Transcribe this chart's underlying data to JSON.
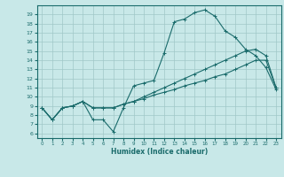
{
  "title": "",
  "xlabel": "Humidex (Indice chaleur)",
  "bg_color": "#c8e8e8",
  "line_color": "#1a6b6b",
  "grid_color": "#a0c8c8",
  "xlim": [
    -0.5,
    23.5
  ],
  "ylim": [
    5.5,
    20.0
  ],
  "xticks": [
    0,
    1,
    2,
    3,
    4,
    5,
    6,
    7,
    8,
    9,
    10,
    11,
    12,
    13,
    14,
    15,
    16,
    17,
    18,
    19,
    20,
    21,
    22,
    23
  ],
  "yticks": [
    6,
    7,
    8,
    9,
    10,
    11,
    12,
    13,
    14,
    15,
    16,
    17,
    18,
    19
  ],
  "line1_x": [
    0,
    1,
    2,
    3,
    4,
    5,
    6,
    7,
    8,
    9,
    10,
    11,
    12,
    13,
    14,
    15,
    16,
    17,
    18,
    19,
    20,
    21,
    22,
    23
  ],
  "line1_y": [
    8.8,
    7.5,
    8.8,
    9.0,
    9.5,
    7.5,
    7.5,
    6.2,
    8.8,
    11.2,
    11.5,
    11.8,
    14.8,
    18.2,
    18.5,
    19.2,
    19.5,
    18.8,
    17.2,
    16.5,
    15.2,
    14.5,
    13.2,
    10.8
  ],
  "line2_x": [
    0,
    1,
    2,
    3,
    4,
    5,
    6,
    7,
    8,
    9,
    10,
    11,
    12,
    13,
    14,
    15,
    16,
    17,
    18,
    19,
    20,
    21,
    22,
    23
  ],
  "line2_y": [
    8.8,
    7.5,
    8.8,
    9.0,
    9.5,
    8.8,
    8.8,
    8.8,
    9.2,
    9.5,
    9.8,
    10.2,
    10.5,
    10.8,
    11.2,
    11.5,
    11.8,
    12.2,
    12.5,
    13.0,
    13.5,
    14.0,
    14.0,
    11.0
  ],
  "line3_x": [
    0,
    1,
    2,
    3,
    4,
    5,
    6,
    7,
    8,
    9,
    10,
    11,
    12,
    13,
    14,
    15,
    16,
    17,
    18,
    19,
    20,
    21,
    22,
    23
  ],
  "line3_y": [
    8.8,
    7.5,
    8.8,
    9.0,
    9.5,
    8.8,
    8.8,
    8.8,
    9.2,
    9.5,
    10.0,
    10.5,
    11.0,
    11.5,
    12.0,
    12.5,
    13.0,
    13.5,
    14.0,
    14.5,
    15.0,
    15.2,
    14.5,
    11.0
  ]
}
